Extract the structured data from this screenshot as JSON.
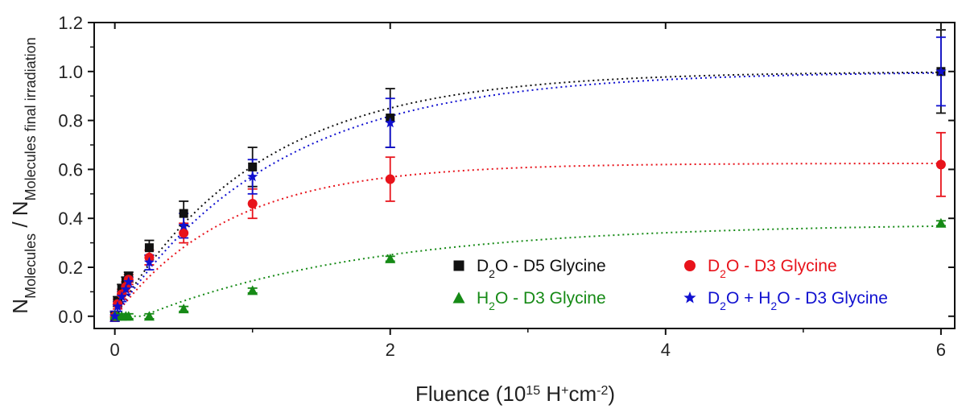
{
  "chart_data": {
    "type": "scatter",
    "xlabel": {
      "main": "Fluence (10",
      "sup1": "15",
      "mid": " H",
      "sup2": "+",
      "mid2": "cm",
      "sup3": "-2",
      "end": ")"
    },
    "ylabel": {
      "n1": "N",
      "sub1": "Molecules",
      "slash": " / N",
      "sub2": "Molecules final irradiation"
    },
    "xlim": [
      -0.15,
      6.1
    ],
    "ylim": [
      -0.05,
      1.2
    ],
    "x_ticks": [
      0,
      2,
      4,
      6
    ],
    "y_ticks": [
      0.0,
      0.2,
      0.4,
      0.6,
      0.8,
      1.0,
      1.2
    ],
    "x_tick_labels": [
      "0",
      "2",
      "4",
      "6"
    ],
    "y_tick_labels": [
      "0.0",
      "0.2",
      "0.4",
      "0.6",
      "0.8",
      "1.0",
      "1.2"
    ],
    "legend_position": "bottom-right",
    "series": [
      {
        "name": "D2O - D5 Glycine",
        "legend_parts": [
          "D",
          "2",
          "O - D5 Glycine"
        ],
        "color": "#111111",
        "marker": "square",
        "x": [
          0.0,
          0.02,
          0.05,
          0.08,
          0.1,
          0.25,
          0.5,
          1.0,
          2.0,
          6.0
        ],
        "y": [
          0.0,
          0.06,
          0.11,
          0.14,
          0.16,
          0.28,
          0.42,
          0.61,
          0.81,
          1.0
        ],
        "err": [
          0.02,
          0.02,
          0.02,
          0.02,
          0.02,
          0.03,
          0.05,
          0.08,
          0.12,
          0.17
        ],
        "fit": {
          "a": 1.0,
          "k": 0.95
        }
      },
      {
        "name": "D2O - D3 Glycine",
        "legend_parts": [
          "D",
          "2",
          "O - D3 Glycine"
        ],
        "color": "#e8131b",
        "marker": "circle",
        "x": [
          0.0,
          0.02,
          0.05,
          0.08,
          0.1,
          0.25,
          0.5,
          1.0,
          2.0,
          6.0
        ],
        "y": [
          0.0,
          0.05,
          0.09,
          0.12,
          0.15,
          0.24,
          0.34,
          0.46,
          0.56,
          0.62
        ],
        "err": [
          0.02,
          0.02,
          0.02,
          0.02,
          0.02,
          0.03,
          0.04,
          0.06,
          0.09,
          0.13
        ],
        "fit": {
          "a": 0.625,
          "k": 1.2
        }
      },
      {
        "name": "H2O - D3 Glycine",
        "legend_parts": [
          "H",
          "2",
          "O - D3 Glycine"
        ],
        "color": "#168a16",
        "marker": "triangle",
        "x": [
          0.0,
          0.02,
          0.05,
          0.08,
          0.1,
          0.25,
          0.5,
          1.0,
          2.0,
          6.0
        ],
        "y": [
          0.005,
          0.0,
          0.0,
          0.0,
          0.0,
          0.0,
          0.03,
          0.105,
          0.235,
          0.38
        ],
        "err": [
          0.01,
          0.01,
          0.01,
          0.01,
          0.01,
          0.01,
          0.01,
          0.01,
          0.01,
          0.01
        ],
        "fit": {
          "a": 0.38,
          "k": 0.6,
          "x0": 0.2
        }
      },
      {
        "name": "D2O + H2O - D3 Glycine",
        "legend_parts": [
          "D",
          "2",
          "O + H",
          "2",
          "O - D3 Glycine"
        ],
        "color": "#1010d0",
        "marker": "star",
        "x": [
          0.0,
          0.02,
          0.05,
          0.08,
          0.1,
          0.25,
          0.5,
          1.0,
          2.0,
          6.0
        ],
        "y": [
          0.0,
          0.04,
          0.08,
          0.11,
          0.14,
          0.22,
          0.37,
          0.57,
          0.79,
          1.0
        ],
        "err": [
          0.02,
          0.02,
          0.02,
          0.02,
          0.02,
          0.03,
          0.05,
          0.07,
          0.1,
          0.14
        ],
        "fit": {
          "a": 1.0,
          "k": 0.85
        }
      }
    ]
  }
}
